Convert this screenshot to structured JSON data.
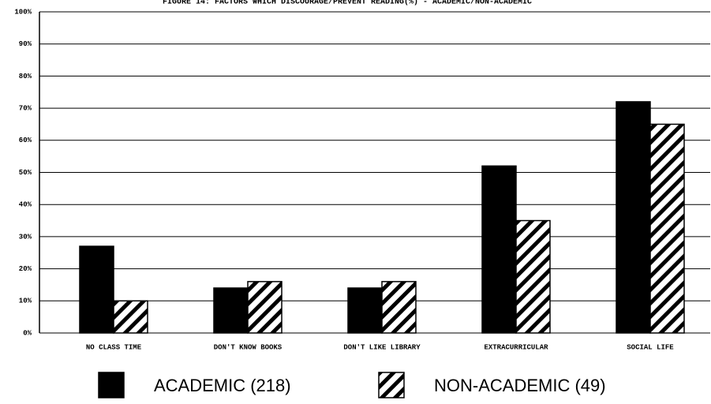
{
  "chart_data": {
    "type": "bar",
    "title": "FIGURE 14: FACTORS WHICH DISCOURAGE/PREVENT READING(%) - ACADEMIC/NON-ACADEMIC",
    "categories": [
      "NO CLASS TIME",
      "DON'T KNOW BOOKS",
      "DON'T LIKE LIBRARY",
      "EXTRACURRICULAR",
      "SOCIAL LIFE"
    ],
    "series": [
      {
        "name": "ACADEMIC (218)",
        "color": "#000000",
        "fill": "solid",
        "values": [
          27,
          14,
          14,
          52,
          72
        ]
      },
      {
        "name": "NON-ACADEMIC (49)",
        "color": "#000000",
        "fill": "hatch",
        "values": [
          10,
          16,
          16,
          35,
          65
        ]
      }
    ],
    "ylim": [
      0,
      100
    ],
    "yticks": [
      {
        "value": 0,
        "label": "0%"
      },
      {
        "value": 10,
        "label": "10%"
      },
      {
        "value": 20,
        "label": "20%"
      },
      {
        "value": 30,
        "label": "30%"
      },
      {
        "value": 40,
        "label": "40%"
      },
      {
        "value": 50,
        "label": "50%"
      },
      {
        "value": 60,
        "label": "60%"
      },
      {
        "value": 70,
        "label": "70%"
      },
      {
        "value": 80,
        "label": "80%"
      },
      {
        "value": 90,
        "label": "90%"
      },
      {
        "value": 100,
        "label": "100%"
      }
    ],
    "grid": true,
    "legend": "bottom"
  }
}
